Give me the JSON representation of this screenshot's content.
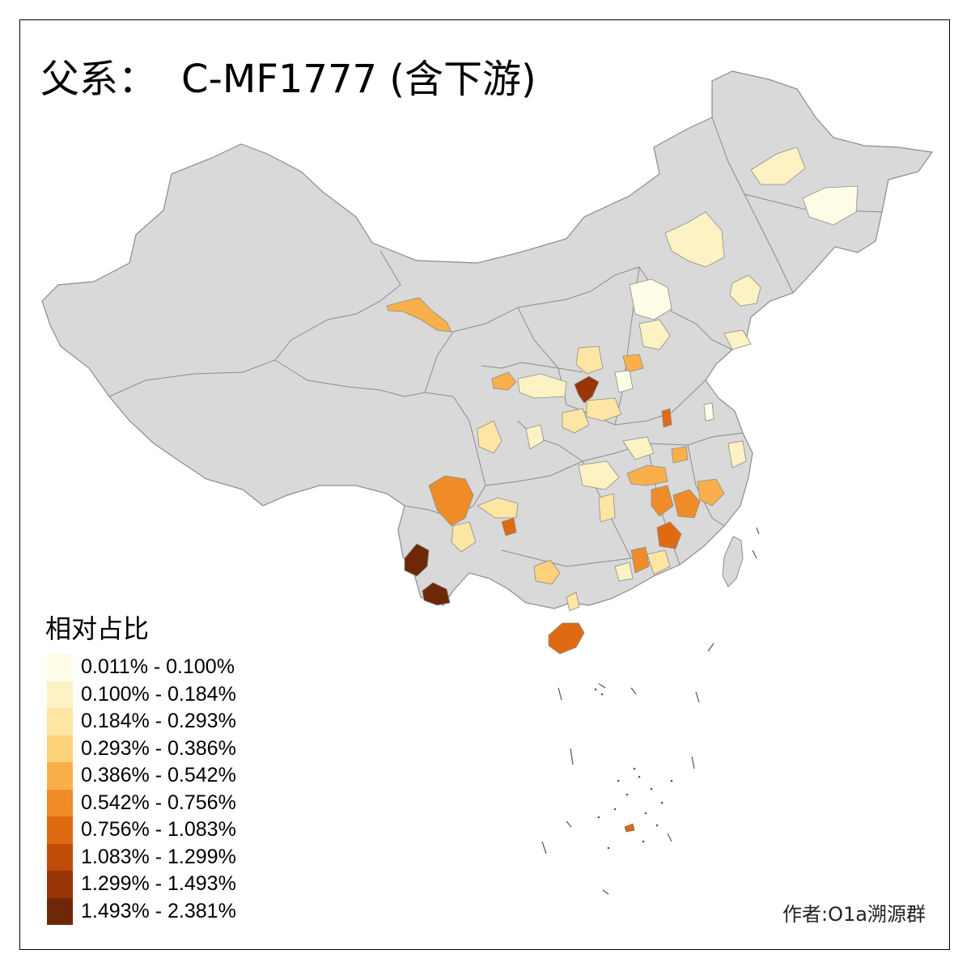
{
  "title": {
    "prefix": "父系：",
    "haplogroup": "C-MF1777 (含下游)"
  },
  "legend": {
    "title": "相对占比",
    "classes": [
      {
        "label": "0.011% - 0.100%",
        "color": "#fffde8"
      },
      {
        "label": "0.100% - 0.184%",
        "color": "#fdf2c3"
      },
      {
        "label": "0.184% - 0.293%",
        "color": "#fde5a4"
      },
      {
        "label": "0.293% - 0.386%",
        "color": "#fdd07a"
      },
      {
        "label": "0.386% - 0.542%",
        "color": "#f9b04a"
      },
      {
        "label": "0.542% - 0.756%",
        "color": "#f08c28"
      },
      {
        "label": "0.756% - 1.083%",
        "color": "#e06a12"
      },
      {
        "label": "1.083% - 1.299%",
        "color": "#c04c0a"
      },
      {
        "label": "1.299% - 1.493%",
        "color": "#983606"
      },
      {
        "label": "1.493% - 2.381%",
        "color": "#6e2808"
      }
    ]
  },
  "map": {
    "base_fill": "#d9d9d9",
    "border_color": "#9a9a9a",
    "highlighted_regions": [
      {
        "area": "Hainan island",
        "class": 6
      },
      {
        "area": "Southwest Yunnan (Pu'er)",
        "class": 9
      },
      {
        "area": "Southern Yunnan (Xishuangbanna)",
        "class": 9
      },
      {
        "area": "Northwest Yunnan (Dali)",
        "class": 5
      },
      {
        "area": "Southern Shanxi",
        "class": 8
      },
      {
        "area": "Northern Guangdong",
        "class": 6
      },
      {
        "area": "Southern Jiangxi",
        "class": 6
      },
      {
        "area": "Western Fujian",
        "class": 5
      },
      {
        "area": "Hexi Corridor, Gansu",
        "class": 4
      },
      {
        "area": "South China Sea shoal",
        "class": 6
      }
    ]
  },
  "credit": "作者:O1a溯源群"
}
